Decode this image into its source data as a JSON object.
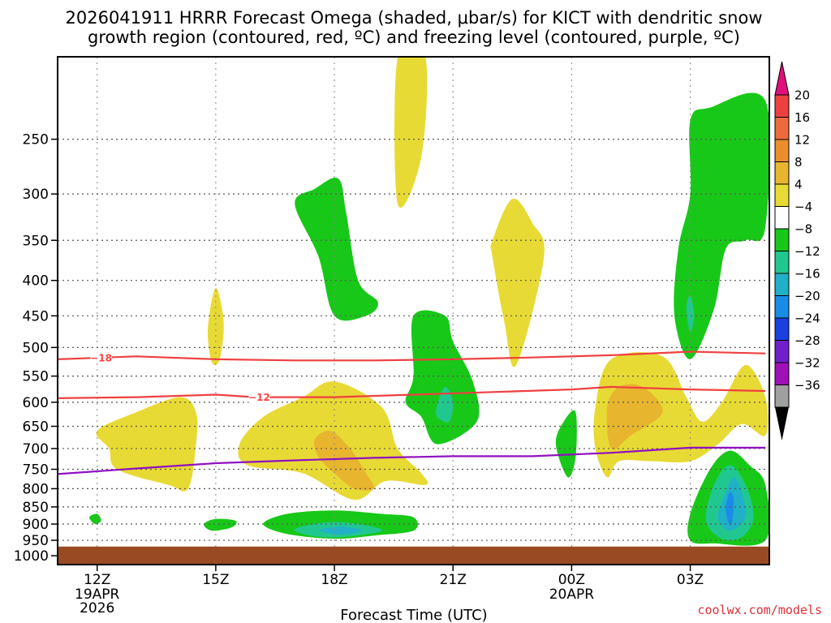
{
  "header": {
    "title_line1": "2026041911 HRRR Forecast Omega (shaded, μbar/s) for KICT with dendritic snow",
    "title_line2": "growth region (contoured, red, ºC) and freezing level (contoured, purple, ºC)"
  },
  "footer": {
    "credit": "coolwx.com/models"
  },
  "chart_data": {
    "type": "time-height cross section",
    "title": "2026041911 HRRR Forecast Omega (shaded, μbar/s) for KICT with dendritic snow growth region (contoured, red, ºC) and freezing level (contoured, purple, ºC)",
    "xlabel": "Forecast Time (UTC)",
    "ylabel": "",
    "x_range_hours": [
      11,
      29
    ],
    "y_range_hpa": [
      1030,
      190
    ],
    "x_ticks": [
      {
        "hour": 12,
        "label": "12Z",
        "sub1": "19APR",
        "sub2": "2026"
      },
      {
        "hour": 15,
        "label": "15Z",
        "sub1": "",
        "sub2": ""
      },
      {
        "hour": 18,
        "label": "18Z",
        "sub1": "",
        "sub2": ""
      },
      {
        "hour": 21,
        "label": "21Z",
        "sub1": "",
        "sub2": ""
      },
      {
        "hour": 24,
        "label": "00Z",
        "sub1": "20APR",
        "sub2": ""
      },
      {
        "hour": 27,
        "label": "03Z",
        "sub1": "",
        "sub2": ""
      }
    ],
    "y_ticks": [
      {
        "p": 250,
        "label": "250"
      },
      {
        "p": 300,
        "label": "300"
      },
      {
        "p": 350,
        "label": "350"
      },
      {
        "p": 400,
        "label": "400"
      },
      {
        "p": 450,
        "label": "450"
      },
      {
        "p": 500,
        "label": "500"
      },
      {
        "p": 550,
        "label": "550"
      },
      {
        "p": 600,
        "label": "600"
      },
      {
        "p": 650,
        "label": "650"
      },
      {
        "p": 700,
        "label": "700"
      },
      {
        "p": 750,
        "label": "750"
      },
      {
        "p": 800,
        "label": "800"
      },
      {
        "p": 850,
        "label": "850"
      },
      {
        "p": 900,
        "label": "900"
      },
      {
        "p": 950,
        "label": "950"
      },
      {
        "p": 1000,
        "label": "1000"
      }
    ],
    "colorbar": {
      "levels": [
        "20",
        "16",
        "12",
        "8",
        "4",
        "-4",
        "-8",
        "-12",
        "-16",
        "-20",
        "-24",
        "-28",
        "-32",
        "-36"
      ],
      "colors": [
        "#ef4040",
        "#ef6a3c",
        "#ec8e2c",
        "#e8b52f",
        "#e8da34",
        "#ffffff",
        "#18c818",
        "#20c890",
        "#20b0c8",
        "#1a8ce8",
        "#1a40e0",
        "#7020c8",
        "#a010b8",
        "#a0a0a0"
      ],
      "top_arrow_color": "#e0107a",
      "bottom_arrow_color": "#000000"
    },
    "surface_pressure_hpa": 970,
    "surface_color": "#9a4a22",
    "omega_regions": [
      {
        "name": "rise-high-1",
        "value_class": 4,
        "color": "#e8da34",
        "points": [
          [
            19.6,
            190
          ],
          [
            20.3,
            190
          ],
          [
            20.2,
            265
          ],
          [
            19.6,
            310
          ]
        ]
      },
      {
        "name": "rise-upper-2",
        "value_class": 4,
        "color": "#e8da34",
        "points": [
          [
            22.0,
            350
          ],
          [
            22.5,
            305
          ],
          [
            23.0,
            330
          ],
          [
            23.3,
            370
          ],
          [
            22.6,
            530
          ],
          [
            22.3,
            460
          ],
          [
            22.0,
            370
          ]
        ]
      },
      {
        "name": "rise-mid-15z",
        "value_class": 4,
        "color": "#e8da34",
        "points": [
          [
            14.9,
            525
          ],
          [
            14.8,
            470
          ],
          [
            15.0,
            410
          ],
          [
            15.2,
            460
          ],
          [
            15.1,
            520
          ]
        ]
      },
      {
        "name": "rise-low-left",
        "value_class": 4,
        "color": "#e8da34",
        "points": [
          [
            12.0,
            660
          ],
          [
            13.0,
            620
          ],
          [
            14.1,
            590
          ],
          [
            14.5,
            620
          ],
          [
            14.5,
            690
          ],
          [
            14.3,
            800
          ],
          [
            13.8,
            790
          ],
          [
            12.5,
            750
          ],
          [
            12.3,
            700
          ]
        ]
      },
      {
        "name": "rise-low-center",
        "value_class": 4,
        "color": "#e8da34",
        "points": [
          [
            15.6,
            690
          ],
          [
            16.2,
            630
          ],
          [
            17.2,
            590
          ],
          [
            18.0,
            560
          ],
          [
            19.2,
            610
          ],
          [
            19.6,
            700
          ],
          [
            20.2,
            760
          ],
          [
            20.3,
            790
          ],
          [
            19.3,
            780
          ],
          [
            18.5,
            830
          ],
          [
            17.2,
            760
          ],
          [
            15.8,
            740
          ]
        ]
      },
      {
        "name": "rise-late",
        "value_class": 4,
        "color": "#e8da34",
        "points": [
          [
            24.6,
            610
          ],
          [
            25.0,
            520
          ],
          [
            26.3,
            515
          ],
          [
            26.9,
            590
          ],
          [
            27.3,
            640
          ],
          [
            27.8,
            600
          ],
          [
            28.4,
            530
          ],
          [
            28.9,
            590
          ],
          [
            28.9,
            670
          ],
          [
            28.3,
            645
          ],
          [
            27.7,
            690
          ],
          [
            27.0,
            730
          ],
          [
            26.0,
            730
          ],
          [
            25.2,
            730
          ],
          [
            24.9,
            770
          ],
          [
            24.6,
            700
          ]
        ]
      },
      {
        "name": "rise-mod-1",
        "value_class": 8,
        "color": "#e8b52f",
        "points": [
          [
            17.5,
            680
          ],
          [
            17.9,
            660
          ],
          [
            18.4,
            700
          ],
          [
            18.8,
            760
          ],
          [
            19.0,
            800
          ],
          [
            18.5,
            800
          ],
          [
            18.0,
            760
          ],
          [
            17.6,
            720
          ]
        ]
      },
      {
        "name": "rise-mod-2",
        "value_class": 8,
        "color": "#e8b52f",
        "points": [
          [
            24.9,
            610
          ],
          [
            25.2,
            570
          ],
          [
            25.8,
            570
          ],
          [
            26.3,
            620
          ],
          [
            25.5,
            670
          ],
          [
            25.0,
            700
          ]
        ]
      },
      {
        "name": "sink-upper",
        "value_class": -4,
        "color": "#18c818",
        "points": [
          [
            17.0,
            310
          ],
          [
            17.5,
            295
          ],
          [
            18.1,
            285
          ],
          [
            18.3,
            320
          ],
          [
            18.6,
            400
          ],
          [
            19.1,
            430
          ],
          [
            18.8,
            450
          ],
          [
            18.0,
            450
          ],
          [
            17.6,
            370
          ]
        ]
      },
      {
        "name": "sink-mid-21z",
        "value_class": -4,
        "color": "#18c818",
        "points": [
          [
            20.0,
            450
          ],
          [
            20.8,
            450
          ],
          [
            21.0,
            490
          ],
          [
            21.5,
            560
          ],
          [
            21.6,
            640
          ],
          [
            20.6,
            690
          ],
          [
            20.2,
            630
          ],
          [
            19.8,
            600
          ],
          [
            20.0,
            550
          ]
        ]
      },
      {
        "name": "sink-mid-21z-core",
        "value_class": -8,
        "color": "#20c890",
        "points": [
          [
            20.6,
            605
          ],
          [
            20.8,
            570
          ],
          [
            21.0,
            600
          ],
          [
            20.9,
            640
          ],
          [
            20.6,
            630
          ]
        ]
      },
      {
        "name": "sink-0z",
        "value_class": -4,
        "color": "#18c818",
        "points": [
          [
            23.6,
            690
          ],
          [
            23.8,
            640
          ],
          [
            24.1,
            620
          ],
          [
            24.1,
            720
          ],
          [
            23.9,
            770
          ]
        ]
      },
      {
        "name": "sink-upper-right",
        "value_class": -4,
        "color": "#18c818",
        "points": [
          [
            27.0,
            235
          ],
          [
            27.5,
            225
          ],
          [
            28.9,
            220
          ],
          [
            28.9,
            335
          ],
          [
            28.4,
            350
          ],
          [
            27.9,
            360
          ],
          [
            27.6,
            440
          ],
          [
            27.0,
            520
          ],
          [
            26.6,
            450
          ],
          [
            26.7,
            360
          ],
          [
            27.0,
            300
          ]
        ]
      },
      {
        "name": "sink-upper-right-core",
        "value_class": -8,
        "color": "#20c890",
        "points": [
          [
            26.9,
            440
          ],
          [
            27.0,
            420
          ],
          [
            27.1,
            450
          ],
          [
            27.0,
            475
          ]
        ]
      },
      {
        "name": "sink-low-right",
        "value_class": -4,
        "color": "#18c818",
        "points": [
          [
            27.0,
            870
          ],
          [
            27.5,
            750
          ],
          [
            28.0,
            705
          ],
          [
            28.5,
            740
          ],
          [
            28.9,
            790
          ],
          [
            28.9,
            950
          ],
          [
            27.6,
            960
          ],
          [
            27.0,
            950
          ]
        ]
      },
      {
        "name": "sink-low-right-mod",
        "value_class": -8,
        "color": "#20c890",
        "points": [
          [
            27.4,
            890
          ],
          [
            27.6,
            790
          ],
          [
            28.0,
            740
          ],
          [
            28.4,
            790
          ],
          [
            28.6,
            880
          ],
          [
            28.3,
            940
          ],
          [
            27.8,
            945
          ]
        ]
      },
      {
        "name": "sink-low-right-strong",
        "value_class": -12,
        "color": "#20b0c8",
        "points": [
          [
            27.7,
            880
          ],
          [
            27.9,
            810
          ],
          [
            28.1,
            770
          ],
          [
            28.3,
            810
          ],
          [
            28.4,
            880
          ],
          [
            28.0,
            920
          ]
        ]
      },
      {
        "name": "sink-low-right-max",
        "value_class": -16,
        "color": "#1a8ce8",
        "points": [
          [
            27.9,
            850
          ],
          [
            28.0,
            810
          ],
          [
            28.1,
            830
          ],
          [
            28.05,
            900
          ],
          [
            27.95,
            890
          ]
        ]
      },
      {
        "name": "sink-sfc-1",
        "value_class": -4,
        "color": "#18c818",
        "points": [
          [
            11.8,
            880
          ],
          [
            12.0,
            870
          ],
          [
            12.1,
            890
          ],
          [
            11.95,
            900
          ]
        ]
      },
      {
        "name": "sink-sfc-2",
        "value_class": -4,
        "color": "#18c818",
        "points": [
          [
            14.7,
            900
          ],
          [
            15.0,
            885
          ],
          [
            15.5,
            890
          ],
          [
            15.4,
            910
          ],
          [
            14.9,
            920
          ]
        ]
      },
      {
        "name": "sink-sfc-3",
        "value_class": -4,
        "color": "#18c818",
        "points": [
          [
            16.2,
            900
          ],
          [
            16.8,
            870
          ],
          [
            18.0,
            860
          ],
          [
            19.2,
            870
          ],
          [
            20.0,
            880
          ],
          [
            20.0,
            920
          ],
          [
            19.0,
            935
          ],
          [
            18.0,
            945
          ],
          [
            16.8,
            930
          ]
        ]
      },
      {
        "name": "sink-sfc-3-core",
        "value_class": -8,
        "color": "#20c890",
        "points": [
          [
            17.0,
            915
          ],
          [
            17.8,
            895
          ],
          [
            18.6,
            900
          ],
          [
            19.2,
            920
          ],
          [
            18.2,
            940
          ],
          [
            17.4,
            935
          ]
        ]
      },
      {
        "name": "sink-sfc-3-max",
        "value_class": -12,
        "color": "#20b0c8",
        "points": [
          [
            17.6,
            918
          ],
          [
            18.2,
            908
          ],
          [
            18.7,
            920
          ],
          [
            18.1,
            932
          ]
        ]
      }
    ],
    "contours": [
      {
        "name": "isotherm -18C",
        "color": "#ef4040",
        "label": "-18",
        "label_hour": 12.1,
        "points": [
          [
            11,
            520
          ],
          [
            13,
            515
          ],
          [
            15,
            520
          ],
          [
            17,
            522
          ],
          [
            19,
            522
          ],
          [
            21,
            520
          ],
          [
            23,
            517
          ],
          [
            25,
            513
          ],
          [
            27,
            507
          ],
          [
            28.9,
            510
          ]
        ]
      },
      {
        "name": "isotherm -12C",
        "color": "#ef4040",
        "label": "-12",
        "label_hour": 16.1,
        "points": [
          [
            11,
            592
          ],
          [
            13,
            590
          ],
          [
            15,
            585
          ],
          [
            16,
            590
          ],
          [
            18,
            590
          ],
          [
            20,
            585
          ],
          [
            22,
            580
          ],
          [
            24,
            575
          ],
          [
            25,
            570
          ],
          [
            27,
            575
          ],
          [
            28.9,
            578
          ]
        ]
      },
      {
        "name": "freezing level 0C",
        "color": "#9010c0",
        "label": "",
        "label_hour": null,
        "points": [
          [
            11,
            762
          ],
          [
            13,
            748
          ],
          [
            15,
            735
          ],
          [
            17,
            728
          ],
          [
            19,
            722
          ],
          [
            21,
            718
          ],
          [
            23,
            718
          ],
          [
            25,
            710
          ],
          [
            27,
            698
          ],
          [
            28.9,
            698
          ]
        ]
      }
    ]
  }
}
